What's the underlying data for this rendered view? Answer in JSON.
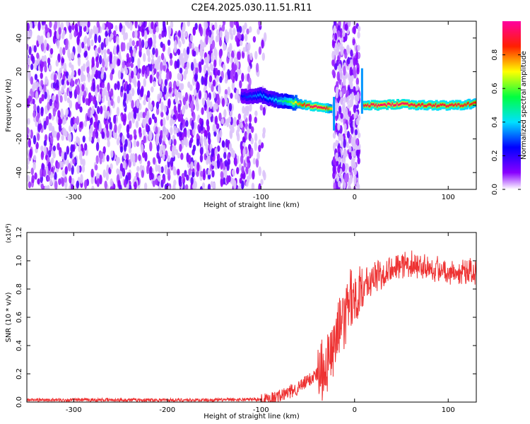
{
  "page_title": "C2E4.2025.030.11.51.R11",
  "chart_data": [
    {
      "type": "heatmap",
      "xlabel": "Height of straight line (km)",
      "ylabel": "Frequency (Hz)",
      "xlim": [
        -350,
        130
      ],
      "ylim": [
        -50,
        50
      ],
      "x_ticks": [
        -300,
        -200,
        -100,
        0,
        100
      ],
      "y_ticks": [
        -40,
        -20,
        0,
        20,
        40
      ],
      "colorbar": {
        "label": "Normalized spectral amplitude",
        "range": [
          0.0,
          1.0
        ],
        "ticks": [
          "0.0",
          "0.2",
          "0.4",
          "0.6",
          "0.8"
        ],
        "tick_values": [
          0.0,
          0.2,
          0.4,
          0.6,
          0.8
        ]
      },
      "noise_region_km": [
        -350,
        -95
      ],
      "gap_region_km": [
        -23,
        5
      ],
      "ridge": [
        {
          "x": -120,
          "f": 5,
          "a": 0.25
        },
        {
          "x": -100,
          "f": 6,
          "a": 0.35
        },
        {
          "x": -90,
          "f": 4,
          "a": 0.35
        },
        {
          "x": -80,
          "f": 3,
          "a": 0.45
        },
        {
          "x": -70,
          "f": 2,
          "a": 0.55
        },
        {
          "x": -60,
          "f": 1,
          "a": 0.75
        },
        {
          "x": -50,
          "f": 0,
          "a": 0.9
        },
        {
          "x": -40,
          "f": -1,
          "a": 0.95
        },
        {
          "x": -30,
          "f": -2,
          "a": 0.9
        },
        {
          "x": -24,
          "f": -2,
          "a": 0.7
        },
        {
          "x": 10,
          "f": 0,
          "a": 0.9
        },
        {
          "x": 30,
          "f": 0,
          "a": 0.95
        },
        {
          "x": 50,
          "f": 1,
          "a": 0.95
        },
        {
          "x": 70,
          "f": 0,
          "a": 0.9
        },
        {
          "x": 90,
          "f": 0,
          "a": 0.9
        },
        {
          "x": 110,
          "f": 0,
          "a": 0.9
        },
        {
          "x": 130,
          "f": 1,
          "a": 0.85
        }
      ]
    },
    {
      "type": "line",
      "xlabel": "Height of straight line (km)",
      "ylabel": "SNR (10 * v/v)",
      "multiplier": "(x10",
      "multiplier_exp": "4",
      "xlim": [
        -350,
        130
      ],
      "ylim": [
        0,
        1.2
      ],
      "x_ticks": [
        -300,
        -200,
        -100,
        0,
        100
      ],
      "y_ticks": [
        "0.0",
        "0.2",
        "0.4",
        "0.6",
        "0.8",
        "1.0",
        "1.2"
      ],
      "y_tick_values": [
        0,
        0.2,
        0.4,
        0.6,
        0.8,
        1.0,
        1.2
      ],
      "color": "#ee3333",
      "series": [
        {
          "x": [
            -350,
            -300,
            -200,
            -150,
            -100,
            -80,
            -60,
            -50,
            -40,
            -30,
            -25,
            -20,
            -15,
            -10,
            -5,
            0,
            10,
            20,
            30,
            40,
            60,
            80,
            100,
            110,
            120,
            130
          ],
          "y": [
            0.015,
            0.015,
            0.015,
            0.015,
            0.02,
            0.04,
            0.1,
            0.15,
            0.2,
            0.25,
            0.35,
            0.45,
            0.55,
            0.6,
            0.7,
            0.75,
            0.82,
            0.88,
            0.93,
            0.96,
            0.98,
            0.96,
            0.92,
            0.93,
            0.92,
            0.9
          ]
        }
      ]
    }
  ]
}
